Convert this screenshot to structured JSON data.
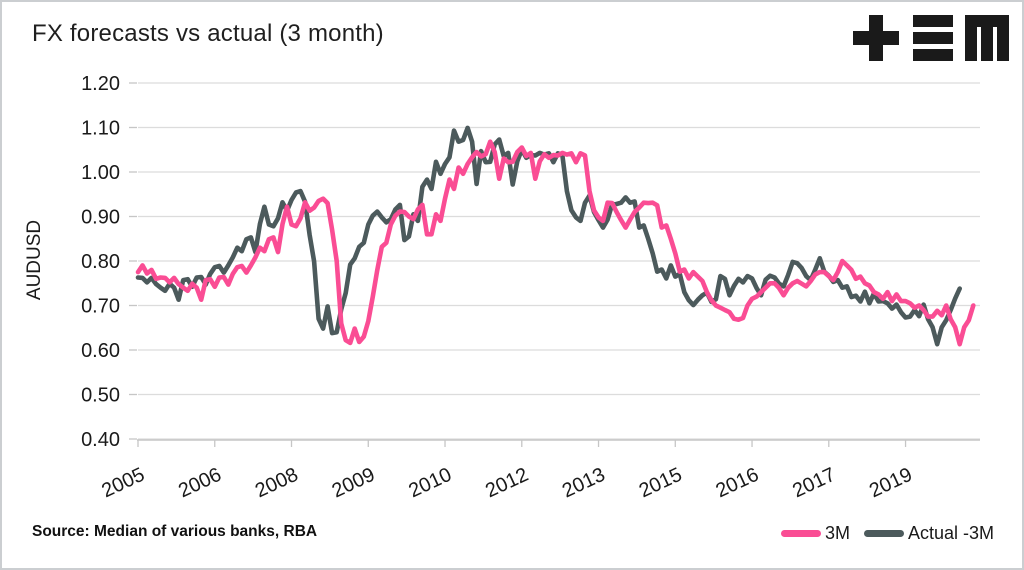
{
  "title": "FX forecasts vs actual (3 month)",
  "source_note": "Source: Median of various banks, RBA",
  "logo": {
    "icon": "tem-logo",
    "color": "#1a1a1a"
  },
  "colors": {
    "background": "#ffffff",
    "frame_border": "#cbced1",
    "grid": "#dcdcdc",
    "axis": "#c6c6c6",
    "text": "#1a1a1a"
  },
  "chart_data": {
    "type": "line",
    "title": "FX forecasts vs actual (3 month)",
    "ylabel": "AUDUSD",
    "ylim": [
      0.4,
      1.2
    ],
    "yticks": [
      1.2,
      1.1,
      1.0,
      0.9,
      0.8,
      0.7,
      0.6,
      0.5,
      0.4
    ],
    "grid": "horizontal-only",
    "legend_position": "bottom-right",
    "x_unit": "monthly points, index 0 = start of series (early 2005)",
    "xticks": [
      {
        "label": "2005",
        "month": 0
      },
      {
        "label": "2006",
        "month": 17
      },
      {
        "label": "2008",
        "month": 34
      },
      {
        "label": "2009",
        "month": 51
      },
      {
        "label": "2010",
        "month": 68
      },
      {
        "label": "2012",
        "month": 85
      },
      {
        "label": "2013",
        "month": 102
      },
      {
        "label": "2015",
        "month": 119
      },
      {
        "label": "2016",
        "month": 136
      },
      {
        "label": "2017",
        "month": 153
      },
      {
        "label": "2019",
        "month": 170
      }
    ],
    "series": [
      {
        "name": "3M",
        "color": "#fa4d94",
        "start_month_index": 0,
        "values": [
          0.775,
          0.79,
          0.772,
          0.78,
          0.76,
          0.763,
          0.762,
          0.752,
          0.762,
          0.748,
          0.74,
          0.733,
          0.749,
          0.74,
          0.713,
          0.757,
          0.759,
          0.742,
          0.763,
          0.764,
          0.747,
          0.771,
          0.786,
          0.789,
          0.774,
          0.79,
          0.808,
          0.83,
          0.822,
          0.849,
          0.853,
          0.82,
          0.883,
          0.922,
          0.882,
          0.878,
          0.896,
          0.932,
          0.913,
          0.92,
          0.935,
          0.94,
          0.93,
          0.87,
          0.8,
          0.66,
          0.622,
          0.616,
          0.648,
          0.618,
          0.63,
          0.665,
          0.72,
          0.78,
          0.832,
          0.841,
          0.882,
          0.902,
          0.911,
          0.91,
          0.9,
          0.894,
          0.916,
          0.926,
          0.86,
          0.86,
          0.905,
          0.89,
          0.94,
          0.983,
          0.962,
          1.01,
          0.996,
          1.018,
          1.033,
          1.045,
          1.035,
          1.04,
          1.068,
          1.045,
          0.985,
          1.03,
          1.022,
          1.023,
          1.045,
          1.055,
          1.036,
          1.043,
          0.985,
          1.024,
          1.04,
          1.032,
          1.038,
          1.037,
          1.043,
          1.039,
          1.042,
          1.022,
          1.042,
          1.037,
          0.957,
          0.914,
          0.898,
          0.89,
          0.931,
          0.93,
          0.91,
          0.892,
          0.875,
          0.893,
          0.91,
          0.92,
          0.931,
          0.93,
          0.931,
          0.925,
          0.875,
          0.88,
          0.85,
          0.817,
          0.776,
          0.781,
          0.761,
          0.775,
          0.765,
          0.755,
          0.73,
          0.712,
          0.7,
          0.695,
          0.69,
          0.685,
          0.67,
          0.668,
          0.672,
          0.7,
          0.715,
          0.72,
          0.73,
          0.74,
          0.75,
          0.75,
          0.739,
          0.723,
          0.74,
          0.75,
          0.755,
          0.749,
          0.743,
          0.755,
          0.77,
          0.775,
          0.775,
          0.766,
          0.757,
          0.775,
          0.8,
          0.79,
          0.78,
          0.76,
          0.765,
          0.75,
          0.745,
          0.73,
          0.725,
          0.715,
          0.73,
          0.71,
          0.725,
          0.71,
          0.71,
          0.705,
          0.695,
          0.7,
          0.69,
          0.675,
          0.675,
          0.688,
          0.678,
          0.7,
          0.669,
          0.651,
          0.613,
          0.651,
          0.667,
          0.7
        ]
      },
      {
        "name": "Actual -3M",
        "color": "#4c5a5c",
        "start_month_index": 0,
        "values": [
          0.763,
          0.762,
          0.752,
          0.762,
          0.748,
          0.74,
          0.733,
          0.749,
          0.74,
          0.713,
          0.757,
          0.759,
          0.742,
          0.763,
          0.764,
          0.747,
          0.771,
          0.786,
          0.789,
          0.774,
          0.79,
          0.808,
          0.83,
          0.822,
          0.849,
          0.853,
          0.82,
          0.883,
          0.922,
          0.882,
          0.878,
          0.896,
          0.932,
          0.913,
          0.937,
          0.954,
          0.957,
          0.933,
          0.859,
          0.799,
          0.67,
          0.648,
          0.698,
          0.638,
          0.64,
          0.691,
          0.728,
          0.792,
          0.806,
          0.832,
          0.841,
          0.882,
          0.902,
          0.911,
          0.898,
          0.887,
          0.894,
          0.916,
          0.926,
          0.847,
          0.855,
          0.905,
          0.89,
          0.967,
          0.983,
          0.962,
          1.023,
          0.996,
          1.018,
          1.033,
          1.093,
          1.068,
          1.072,
          1.099,
          1.068,
          0.973,
          1.047,
          1.022,
          1.023,
          1.062,
          1.073,
          1.036,
          1.043,
          0.972,
          1.024,
          1.05,
          1.032,
          1.038,
          1.037,
          1.043,
          1.039,
          1.042,
          1.022,
          1.042,
          1.037,
          0.957,
          0.914,
          0.898,
          0.89,
          0.931,
          0.947,
          0.91,
          0.892,
          0.875,
          0.893,
          0.927,
          0.928,
          0.931,
          0.943,
          0.931,
          0.934,
          0.875,
          0.88,
          0.85,
          0.817,
          0.776,
          0.781,
          0.761,
          0.79,
          0.765,
          0.771,
          0.73,
          0.712,
          0.701,
          0.713,
          0.723,
          0.729,
          0.708,
          0.714,
          0.766,
          0.76,
          0.723,
          0.744,
          0.76,
          0.752,
          0.766,
          0.761,
          0.739,
          0.723,
          0.758,
          0.767,
          0.763,
          0.749,
          0.743,
          0.769,
          0.798,
          0.795,
          0.784,
          0.766,
          0.757,
          0.781,
          0.806,
          0.776,
          0.767,
          0.753,
          0.757,
          0.74,
          0.743,
          0.719,
          0.722,
          0.709,
          0.731,
          0.705,
          0.727,
          0.709,
          0.71,
          0.705,
          0.693,
          0.702,
          0.685,
          0.673,
          0.675,
          0.69,
          0.676,
          0.702,
          0.669,
          0.651,
          0.613,
          0.651,
          0.667,
          0.69,
          0.716,
          0.738
        ]
      }
    ]
  }
}
